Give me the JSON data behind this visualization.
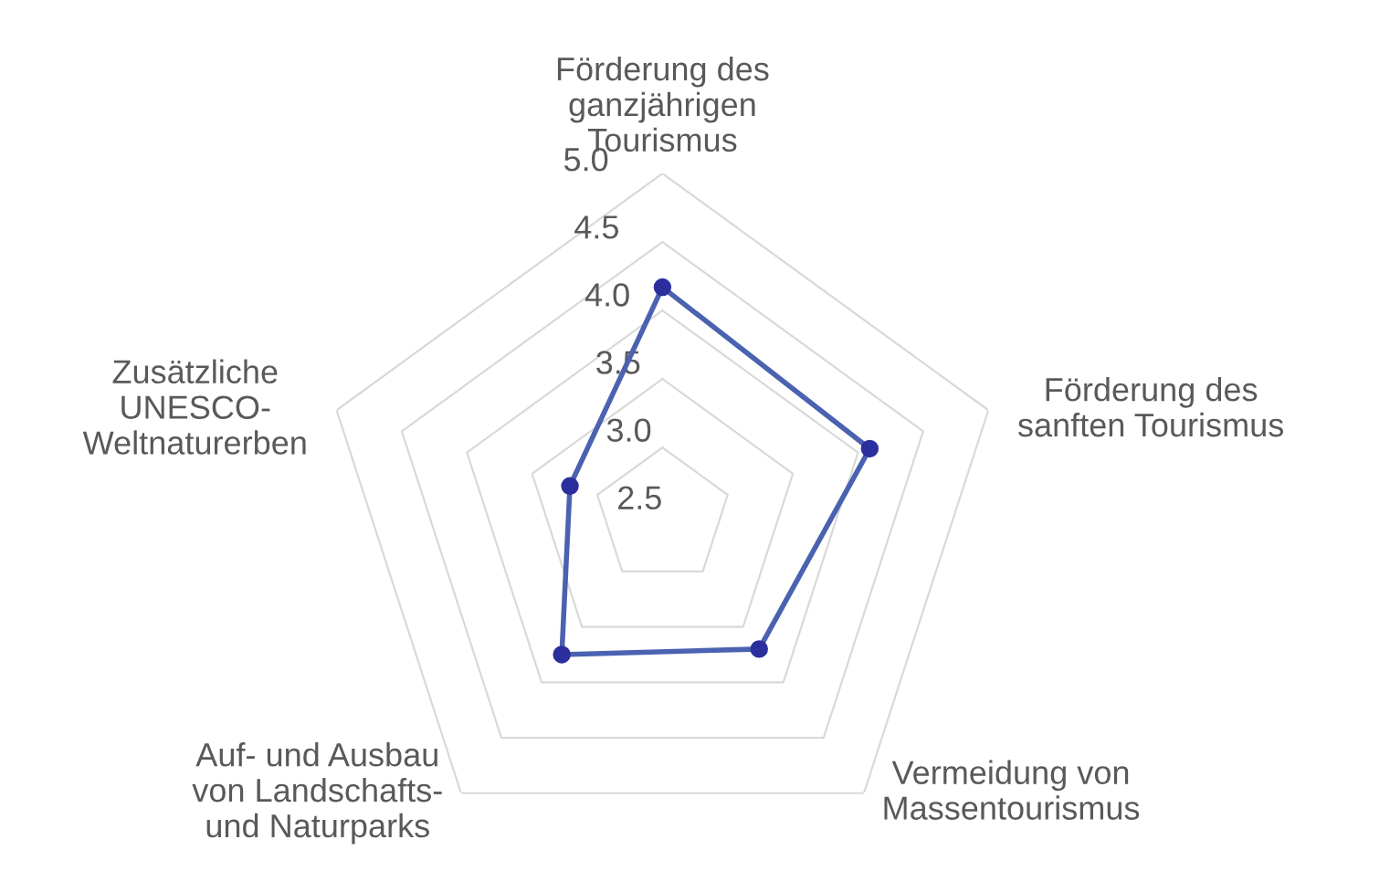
{
  "chart_data": {
    "type": "radar",
    "categories": [
      "Förderung des\nganzjährigen\nTourismus",
      "Förderung des\nsanften Tourismus",
      "Vermeidung von\nMassentourismus",
      "Auf- und Ausbau\nvon Landschafts-\nund Naturparks",
      "Zusätzliche\nUNESCO-\nWeltnaturerben"
    ],
    "series": [
      {
        "color": "#4a62b0",
        "values": [
          4.17,
          4.09,
          3.7,
          3.75,
          3.21
        ]
      }
    ],
    "ylim": [
      2.5,
      5.0
    ],
    "yticks": [
      2.5,
      {
        "value": 3,
        "label": "3.0"
      },
      3.5,
      {
        "value": 4,
        "label": "4.0"
      },
      4.5,
      {
        "value": 5,
        "label": "5.0"
      }
    ],
    "grid": true,
    "marker": "circle",
    "line_style": "solid"
  }
}
